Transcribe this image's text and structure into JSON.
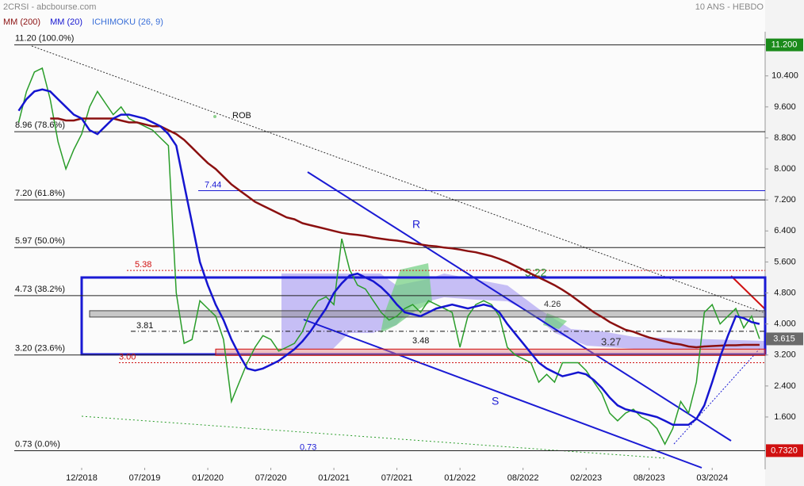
{
  "chart_data": {
    "type": "line",
    "title": "2CRSI - abcbourse.com",
    "subtitle": "10 ANS - HEBDO",
    "categories": [
      null,
      null,
      null,
      null,
      null,
      null,
      null,
      null,
      "12/2018",
      null,
      null,
      null,
      null,
      null,
      null,
      null,
      "07/2019",
      null,
      null,
      null,
      null,
      null,
      null,
      null,
      "01/2020",
      null,
      null,
      null,
      null,
      null,
      null,
      null,
      "07/2020",
      null,
      null,
      null,
      null,
      null,
      null,
      null,
      "01/2021",
      null,
      null,
      null,
      null,
      null,
      null,
      null,
      "07/2021",
      null,
      null,
      null,
      null,
      null,
      null,
      null,
      "01/2022",
      null,
      null,
      null,
      null,
      null,
      null,
      null,
      "08/2022",
      null,
      null,
      null,
      null,
      null,
      null,
      null,
      "02/2023",
      null,
      null,
      null,
      null,
      null,
      null,
      null,
      "08/2023",
      null,
      null,
      null,
      null,
      null,
      null,
      null,
      "03/2024",
      null,
      null,
      null,
      null,
      null,
      null
    ],
    "series": [
      {
        "color": "#2a9d2a",
        "values": [
          9.2,
          10.0,
          10.5,
          10.6,
          9.8,
          8.7,
          8.0,
          8.5,
          8.9,
          9.6,
          10.0,
          9.7,
          9.4,
          9.6,
          9.3,
          9.2,
          9.1,
          9.0,
          8.8,
          8.6,
          4.8,
          3.5,
          3.6,
          4.6,
          4.4,
          4.2,
          3.6,
          2.0,
          2.5,
          3.0,
          3.4,
          3.7,
          3.6,
          3.3,
          3.4,
          3.5,
          3.8,
          4.3,
          4.6,
          4.7,
          4.5,
          6.2,
          5.4,
          5.0,
          4.9,
          4.6,
          4.3,
          4.1,
          4.2,
          4.4,
          4.5,
          4.3,
          4.6,
          4.5,
          4.4,
          4.3,
          3.4,
          4.2,
          4.5,
          4.6,
          4.5,
          4.2,
          3.4,
          3.2,
          3.1,
          3.0,
          2.5,
          2.7,
          2.5,
          3.0,
          3.0,
          3.0,
          2.8,
          2.5,
          2.2,
          1.7,
          1.5,
          1.7,
          1.8,
          1.6,
          1.5,
          1.3,
          0.9,
          1.3,
          2.0,
          1.7,
          2.5,
          4.3,
          4.5,
          4.0,
          4.2,
          4.4,
          3.9,
          4.2,
          3.615
        ]
      },
      {
        "name": "MM (200)",
        "color": "#8b1010",
        "values": [
          null,
          null,
          null,
          null,
          9.3,
          9.3,
          9.25,
          9.25,
          9.3,
          9.3,
          9.3,
          9.3,
          9.3,
          9.25,
          9.2,
          9.2,
          9.15,
          9.1,
          9.1,
          9.0,
          8.9,
          8.75,
          8.55,
          8.35,
          8.15,
          8.0,
          7.8,
          7.6,
          7.45,
          7.3,
          7.15,
          7.05,
          6.95,
          6.85,
          6.75,
          6.7,
          6.6,
          6.55,
          6.5,
          6.45,
          6.4,
          6.35,
          6.32,
          6.3,
          6.27,
          6.23,
          6.2,
          6.17,
          6.15,
          6.12,
          6.08,
          6.05,
          6.02,
          6.0,
          5.97,
          5.95,
          5.92,
          5.88,
          5.85,
          5.8,
          5.75,
          5.68,
          5.6,
          5.5,
          5.4,
          5.3,
          5.2,
          5.1,
          5.0,
          4.88,
          4.75,
          4.6,
          4.45,
          4.3,
          4.18,
          4.05,
          3.95,
          3.85,
          3.8,
          3.72,
          3.65,
          3.6,
          3.55,
          3.5,
          3.47,
          3.42,
          3.4,
          3.42,
          3.43,
          3.44,
          3.45,
          3.45,
          3.46,
          3.46,
          3.46
        ]
      },
      {
        "name": "MM (20)",
        "color": "#1515d0",
        "values": [
          9.5,
          9.8,
          10.0,
          10.05,
          10.0,
          9.8,
          9.6,
          9.4,
          9.3,
          9.0,
          8.9,
          9.1,
          9.3,
          9.4,
          9.4,
          9.35,
          9.3,
          9.2,
          9.1,
          8.9,
          8.6,
          7.6,
          6.6,
          5.6,
          5.0,
          4.5,
          4.1,
          3.6,
          3.2,
          2.85,
          2.8,
          2.85,
          2.95,
          3.05,
          3.2,
          3.35,
          3.55,
          3.8,
          4.1,
          4.4,
          4.8,
          5.05,
          5.25,
          5.3,
          5.2,
          5.1,
          4.95,
          4.75,
          4.5,
          4.3,
          4.25,
          4.2,
          4.3,
          4.4,
          4.45,
          4.5,
          4.45,
          4.4,
          4.45,
          4.5,
          4.45,
          4.3,
          4.0,
          3.75,
          3.5,
          3.25,
          3.0,
          2.85,
          2.75,
          2.65,
          2.7,
          2.75,
          2.7,
          2.55,
          2.35,
          2.1,
          1.9,
          1.8,
          1.75,
          1.7,
          1.65,
          1.6,
          1.5,
          1.4,
          1.4,
          1.4,
          1.55,
          1.9,
          2.5,
          3.15,
          3.7,
          4.2,
          4.15,
          4.05,
          4.0
        ]
      }
    ],
    "ichimoku_label": "ICHIMOKU (26, 9)",
    "ichimoku_color": "#3a6fd8",
    "ylim": [
      0.29,
      11.54
    ],
    "yticks": [
      {
        "value": 10.4,
        "label": "10.400"
      },
      {
        "value": 9.6,
        "label": "9.600"
      },
      {
        "value": 8.8,
        "label": "8.800"
      },
      {
        "value": 8.0,
        "label": "8.000"
      },
      {
        "value": 7.2,
        "label": "7.200"
      },
      {
        "value": 6.4,
        "label": "6.400"
      },
      {
        "value": 5.6,
        "label": "5.600"
      },
      {
        "value": 4.8,
        "label": "4.800"
      },
      {
        "value": 4.0,
        "label": "4.000"
      },
      {
        "value": 3.2,
        "label": "3.200"
      },
      {
        "value": 2.4,
        "label": "2.400"
      },
      {
        "value": 1.6,
        "label": "1.600"
      }
    ],
    "grid": false,
    "fib_levels": [
      {
        "value": 11.2,
        "label": "11.20 (100.0%)"
      },
      {
        "value": 8.96,
        "label": "8.96 (78.6%)"
      },
      {
        "value": 7.2,
        "label": "7.20 (61.8%)"
      },
      {
        "value": 5.97,
        "label": "5.97 (50.0%)"
      },
      {
        "value": 4.73,
        "label": "4.73 (38.2%)"
      },
      {
        "value": 3.2,
        "label": "3.20 (23.6%)"
      },
      {
        "value": 0.73,
        "label": "0.73 (0.0%)"
      }
    ],
    "levels": [
      {
        "value": 7.44,
        "label": "7.44",
        "color": "#1a1ad4",
        "style": "solid"
      },
      {
        "value": 5.38,
        "label": "5.38",
        "color": "#d01010",
        "style": "dotted"
      },
      {
        "value": 3.0,
        "label": "3.00",
        "color": "#d01010",
        "style": "dotted"
      },
      {
        "value": 3.81,
        "label": "3.81",
        "color": "#111111",
        "style": "dashdot"
      },
      {
        "value": 3.48,
        "label": "3.48",
        "color": "#111111",
        "style": "none"
      },
      {
        "value": 4.26,
        "label": "4.26",
        "color": "#888888",
        "style": "band"
      },
      {
        "value": 3.27,
        "label": "3.27",
        "color": "#e07878",
        "style": "band"
      },
      {
        "value": 5.22,
        "label": "5.22",
        "color": "#2a8a2a",
        "style": "none"
      },
      {
        "value": 0.73,
        "label": "0.73",
        "color": "#1a1ad4",
        "style": "none"
      }
    ],
    "annotations": [
      "ROB",
      "R",
      "S"
    ],
    "last_badges": [
      {
        "value": 11.2,
        "label": "11.200",
        "color": "#1a8a1a"
      },
      {
        "value": 3.615,
        "label": "3.615",
        "color": "#6a6a6a"
      },
      {
        "value": 0.732,
        "label": "0.7320",
        "color": "#d01010"
      }
    ]
  }
}
